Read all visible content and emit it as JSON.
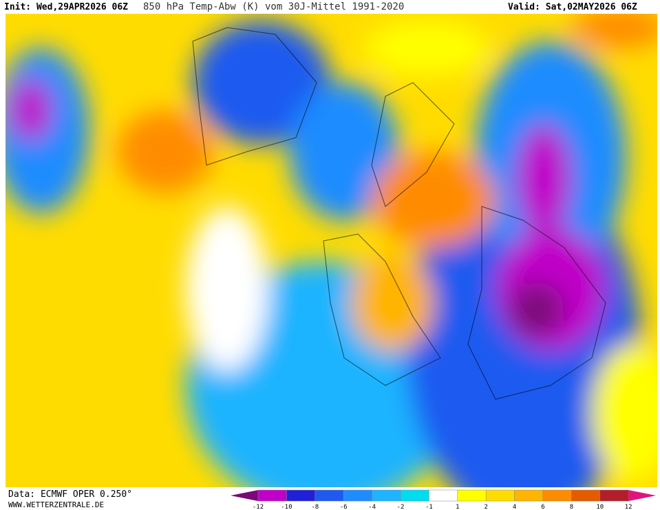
{
  "header": {
    "init": "Init: Wed,29APR2026 06Z",
    "title": "850 hPa Temp-Abw (K) vom 30J-Mittel 1991-2020",
    "valid": "Valid: Sat,02MAY2026 06Z"
  },
  "footer": {
    "source": "Data: ECMWF OPER 0.250°",
    "site": "WWW.WETTERZENTRALE.DE"
  },
  "legend": {
    "ticks": [
      -12,
      -10,
      -8,
      -6,
      -4,
      -2,
      -1,
      1,
      2,
      4,
      6,
      8,
      10,
      12
    ],
    "colors": [
      "#7a0a78",
      "#c000c8",
      "#2020d8",
      "#1e5af0",
      "#1e8cff",
      "#1eb4ff",
      "#00dcf0",
      "#ffffff",
      "#ffff00",
      "#ffdc00",
      "#ffb400",
      "#ff8c00",
      "#e65a00",
      "#b41e28",
      "#e0147c"
    ]
  }
}
